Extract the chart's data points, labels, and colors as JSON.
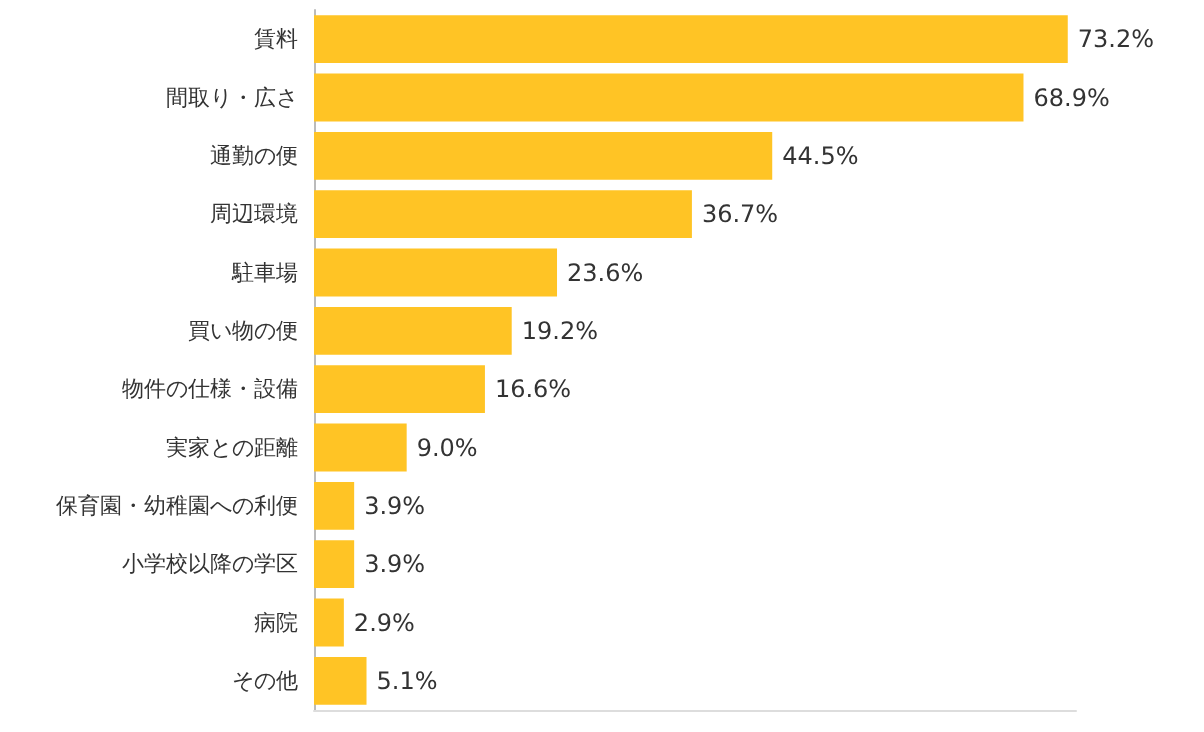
{
  "chart_data": {
    "type": "bar",
    "orientation": "horizontal",
    "categories": [
      "賃料",
      "間取り・広さ",
      "通勤の便",
      "周辺環境",
      "駐車場",
      "買い物の便",
      "物件の仕様・設備",
      "実家との距離",
      "保育園・幼稚園への利便",
      "小学校以降の学区",
      "病院",
      "その他"
    ],
    "values": [
      73.2,
      68.9,
      44.5,
      36.7,
      23.6,
      19.2,
      16.6,
      9.0,
      3.9,
      3.9,
      2.9,
      5.1
    ],
    "value_labels": [
      "73.2%",
      "68.9%",
      "44.5%",
      "36.7%",
      "23.6%",
      "19.2%",
      "16.6%",
      "9.0%",
      "3.9%",
      "3.9%",
      "2.9%",
      "5.1%"
    ],
    "color": "#ffc425",
    "xlim": [
      0,
      74
    ],
    "tick_labels": "y"
  }
}
